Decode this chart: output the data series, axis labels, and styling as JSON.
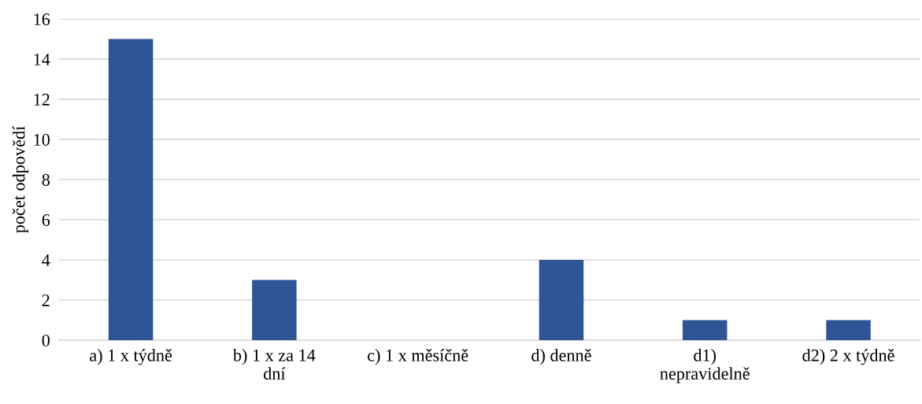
{
  "chart_data": {
    "type": "bar",
    "ylabel": "počet odpovědí",
    "categories": [
      "a) 1 x týdně",
      "b) 1 x za 14 dní",
      "c) 1 x měsíčně",
      "d) denně",
      "d1) nepravidelně",
      "d2) 2 x týdně"
    ],
    "values": [
      15,
      3,
      0,
      4,
      1,
      1
    ],
    "color": "#2f5597",
    "ylim": [
      0,
      16
    ],
    "yticks": [
      0,
      2,
      4,
      6,
      8,
      10,
      12,
      14,
      16
    ],
    "grid": "y"
  }
}
